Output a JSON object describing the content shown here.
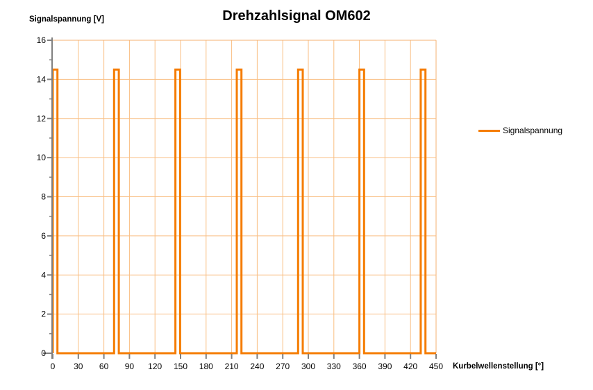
{
  "chart_data": {
    "type": "line",
    "title": "Drehzahlsignal OM602",
    "xlabel": "Kurbelwellenstellung [°]",
    "ylabel": "Signalspannung [V]",
    "xlim": [
      0,
      450
    ],
    "ylim": [
      0,
      16
    ],
    "x_major_ticks": [
      0,
      30,
      60,
      90,
      120,
      150,
      180,
      210,
      240,
      270,
      300,
      330,
      360,
      390,
      420,
      450
    ],
    "y_major_ticks": [
      0,
      2,
      4,
      6,
      8,
      10,
      12,
      14,
      16
    ],
    "y_minor_ticks": [
      1,
      3,
      5,
      7,
      9,
      11,
      13,
      15
    ],
    "grid": true,
    "legend_position": "right",
    "legend": {
      "entries": [
        {
          "label": "Signalspannung",
          "color": "#F57C00"
        }
      ]
    },
    "signal_description": {
      "waveform": "rectangular pulses",
      "pulse_high_v": 14.5,
      "pulse_low_v": 0,
      "pulse_width_deg": 5.5,
      "pulse_rise_positions_deg": [
        0,
        72,
        144,
        216,
        288,
        360,
        432
      ]
    },
    "series": [
      {
        "name": "Signalspannung",
        "color": "#F57C00",
        "line_width": 3,
        "points": [
          [
            0,
            0
          ],
          [
            0,
            14.5
          ],
          [
            5.5,
            14.5
          ],
          [
            5.5,
            0
          ],
          [
            72,
            0
          ],
          [
            72,
            14.5
          ],
          [
            77.5,
            14.5
          ],
          [
            77.5,
            0
          ],
          [
            144,
            0
          ],
          [
            144,
            14.5
          ],
          [
            149.5,
            14.5
          ],
          [
            149.5,
            0
          ],
          [
            216,
            0
          ],
          [
            216,
            14.5
          ],
          [
            221.5,
            14.5
          ],
          [
            221.5,
            0
          ],
          [
            288,
            0
          ],
          [
            288,
            14.5
          ],
          [
            293.5,
            14.5
          ],
          [
            293.5,
            0
          ],
          [
            360,
            0
          ],
          [
            360,
            14.5
          ],
          [
            365.5,
            14.5
          ],
          [
            365.5,
            0
          ],
          [
            432,
            0
          ],
          [
            432,
            14.5
          ],
          [
            437.5,
            14.5
          ],
          [
            437.5,
            0
          ],
          [
            450,
            0
          ]
        ]
      }
    ],
    "style": {
      "grid_color": "#F9BE82",
      "frame_color": "#F5B070",
      "axis_color": "#808080",
      "text_color": "#000000",
      "background": "#FFFFFF"
    }
  }
}
